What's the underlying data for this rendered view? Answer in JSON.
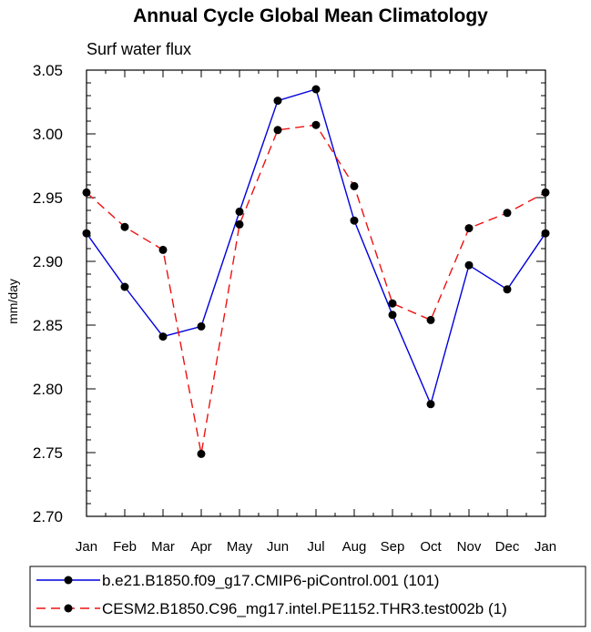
{
  "chart_data": {
    "type": "line",
    "title": "Annual Cycle Global Mean Climatology",
    "subtitle": "Surf water flux",
    "xlabel": "",
    "ylabel": "mm/day",
    "categories": [
      "Jan",
      "Feb",
      "Mar",
      "Apr",
      "May",
      "Jun",
      "Jul",
      "Aug",
      "Sep",
      "Oct",
      "Nov",
      "Dec",
      "Jan"
    ],
    "ylim": [
      2.7,
      3.05
    ],
    "yticks": [
      "2.70",
      "2.75",
      "2.80",
      "2.85",
      "2.90",
      "2.95",
      "3.00",
      "3.05"
    ],
    "grid": false,
    "legend_position": "bottom",
    "series": [
      {
        "name": "b.e21.B1850.f09_g17.CMIP6-piControl.001 (101)",
        "color": "#0000dd",
        "dash": "solid",
        "values": [
          2.922,
          2.88,
          2.841,
          2.849,
          2.939,
          3.026,
          3.035,
          2.932,
          2.858,
          2.788,
          2.897,
          2.878,
          2.922
        ]
      },
      {
        "name": "CESM2.B1850.C96_mg17.intel.PE1152.THR3.test002b (1)",
        "color": "#ee1111",
        "dash": "dashed",
        "values": [
          2.954,
          2.927,
          2.909,
          2.749,
          2.929,
          3.003,
          3.007,
          2.959,
          2.867,
          2.854,
          2.926,
          2.938,
          2.954
        ]
      }
    ]
  }
}
